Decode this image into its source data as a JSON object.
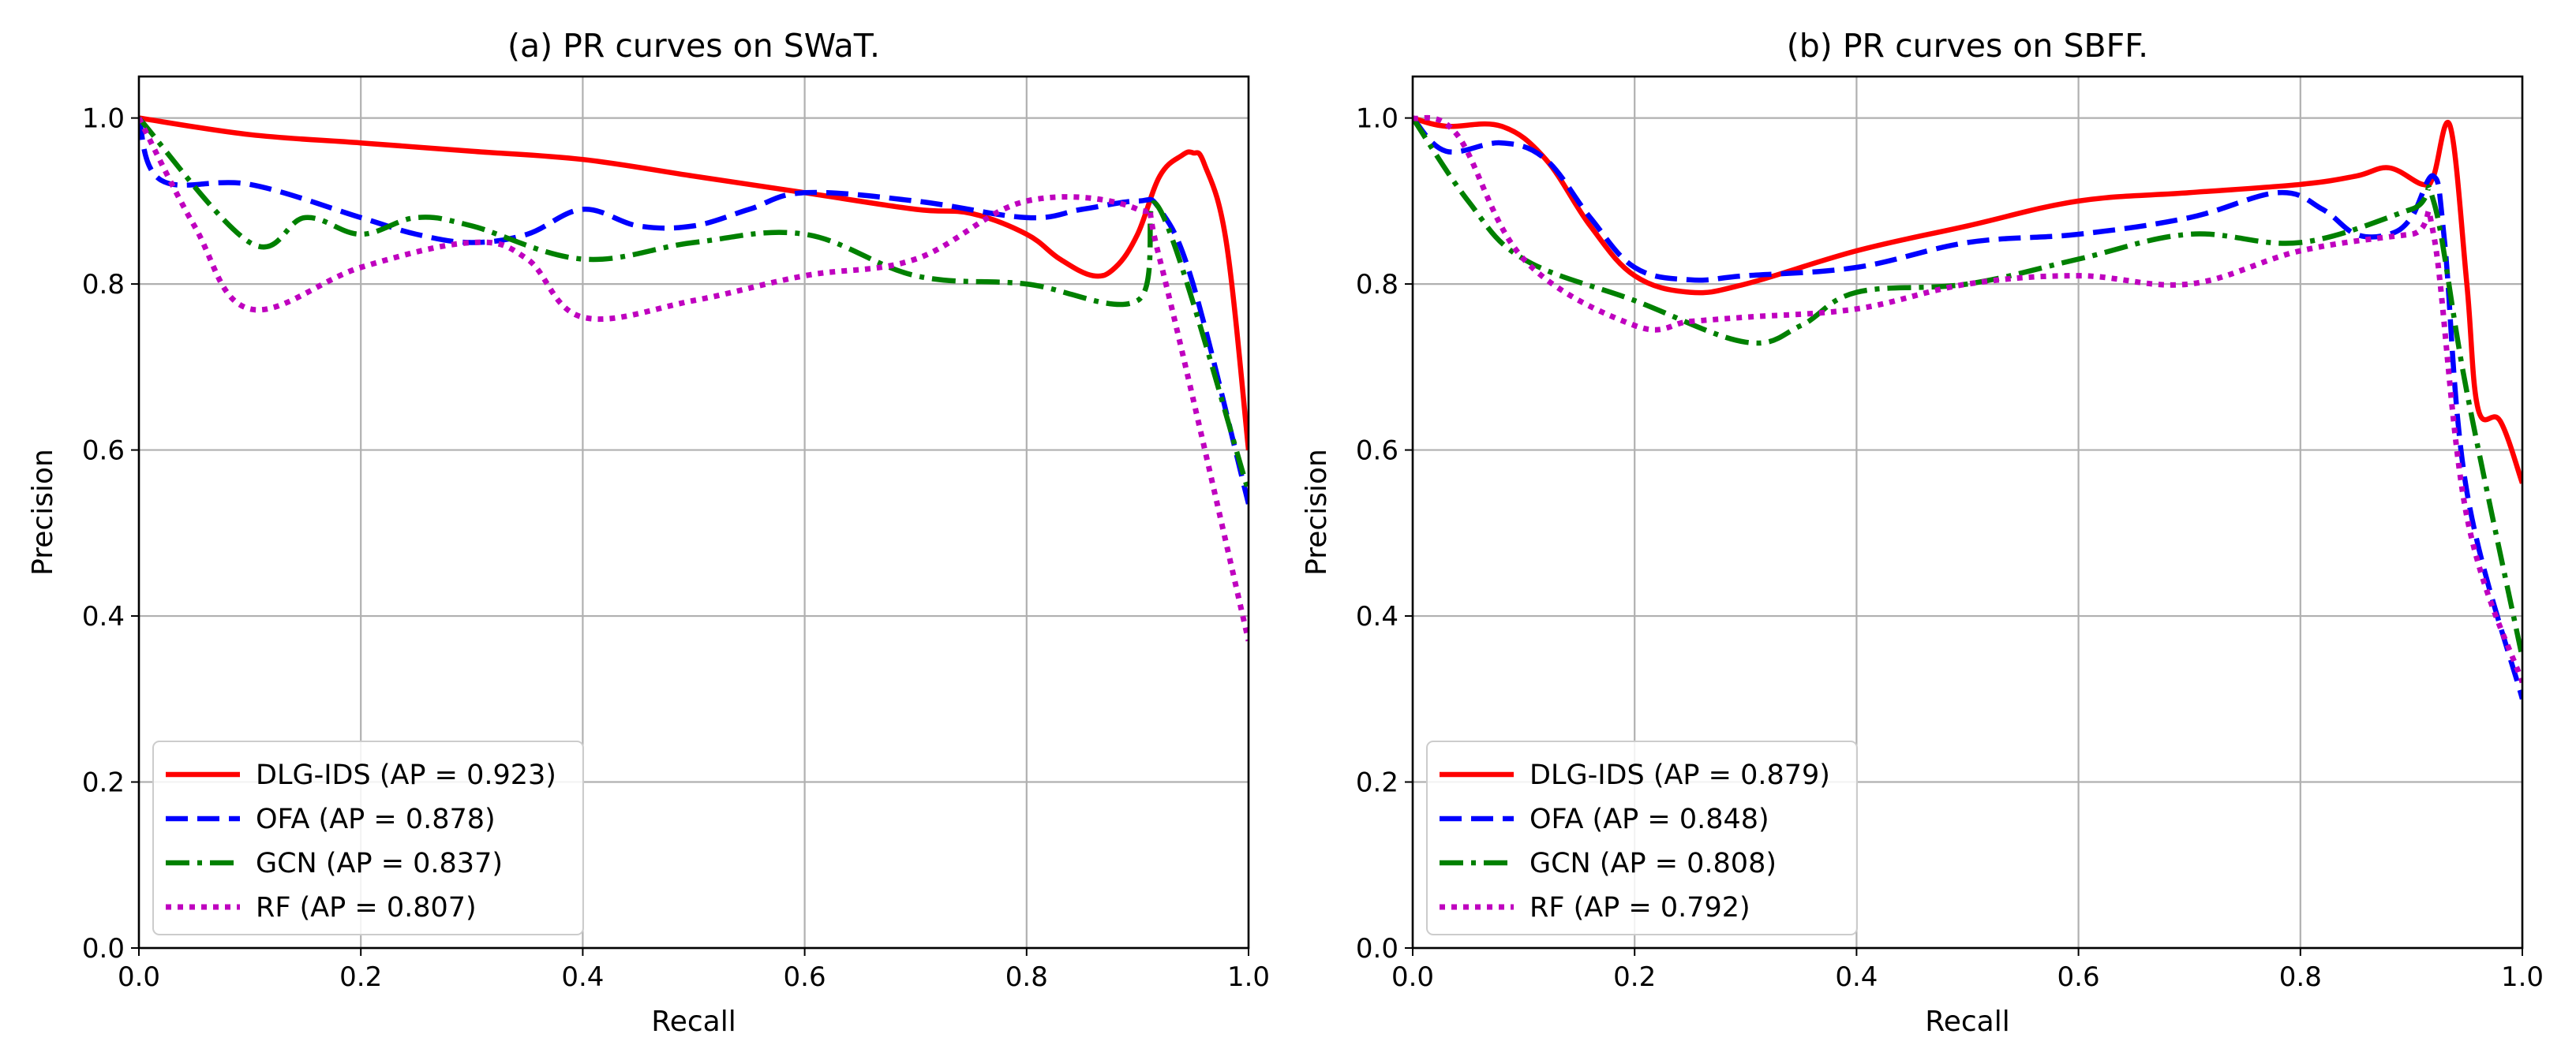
{
  "chart_data": [
    {
      "type": "line",
      "title": "(a) PR curves on SWaT.",
      "xlabel": "Recall",
      "ylabel": "Precision",
      "xlim": [
        0,
        1
      ],
      "ylim": [
        0,
        1.05
      ],
      "xticks": [
        "0.0",
        "0.2",
        "0.4",
        "0.6",
        "0.8",
        "1.0"
      ],
      "yticks": [
        "0.0",
        "0.2",
        "0.4",
        "0.6",
        "0.8",
        "1.0"
      ],
      "xtick_values": [
        0,
        0.2,
        0.4,
        0.6,
        0.8,
        1.0
      ],
      "ytick_values": [
        0,
        0.2,
        0.4,
        0.6,
        0.8,
        1.0
      ],
      "grid": true,
      "legend_position": "lower-left",
      "series": [
        {
          "name": "DLG-IDS (AP = 0.923)",
          "color": "#ff0000",
          "style": "solid",
          "x": [
            0,
            0.1,
            0.2,
            0.3,
            0.4,
            0.5,
            0.6,
            0.7,
            0.75,
            0.8,
            0.83,
            0.86,
            0.88,
            0.9,
            0.92,
            0.94,
            0.95,
            0.96,
            0.98,
            1.0
          ],
          "y": [
            1.0,
            0.98,
            0.97,
            0.96,
            0.95,
            0.93,
            0.91,
            0.89,
            0.885,
            0.86,
            0.83,
            0.81,
            0.82,
            0.86,
            0.93,
            0.955,
            0.958,
            0.945,
            0.85,
            0.6
          ]
        },
        {
          "name": "OFA (AP = 0.878)",
          "color": "#0000ff",
          "style": "dashed",
          "x": [
            0,
            0.02,
            0.1,
            0.2,
            0.25,
            0.3,
            0.35,
            0.4,
            0.45,
            0.5,
            0.55,
            0.6,
            0.7,
            0.8,
            0.85,
            0.9,
            0.92,
            0.95,
            1.0
          ],
          "y": [
            1.0,
            0.925,
            0.92,
            0.88,
            0.86,
            0.85,
            0.86,
            0.89,
            0.87,
            0.87,
            0.89,
            0.91,
            0.9,
            0.88,
            0.89,
            0.9,
            0.89,
            0.8,
            0.535
          ]
        },
        {
          "name": "GCN (AP = 0.837)",
          "color": "#008000",
          "style": "dashdot",
          "x": [
            0,
            0.1,
            0.15,
            0.2,
            0.25,
            0.3,
            0.4,
            0.5,
            0.6,
            0.7,
            0.8,
            0.9,
            0.92,
            1.0
          ],
          "y": [
            1.0,
            0.85,
            0.88,
            0.86,
            0.88,
            0.87,
            0.83,
            0.85,
            0.86,
            0.81,
            0.8,
            0.78,
            0.89,
            0.55
          ]
        },
        {
          "name": "RF (AP = 0.807)",
          "color": "#bf00bf",
          "style": "dotted",
          "x": [
            0,
            0.05,
            0.1,
            0.2,
            0.3,
            0.35,
            0.4,
            0.5,
            0.6,
            0.7,
            0.8,
            0.9,
            0.92,
            1.0
          ],
          "y": [
            1.0,
            0.87,
            0.77,
            0.82,
            0.85,
            0.83,
            0.76,
            0.78,
            0.81,
            0.83,
            0.9,
            0.89,
            0.83,
            0.37
          ]
        }
      ]
    },
    {
      "type": "line",
      "title": "(b) PR curves on SBFF.",
      "xlabel": "Recall",
      "ylabel": "Precision",
      "xlim": [
        0,
        1
      ],
      "ylim": [
        0,
        1.05
      ],
      "xticks": [
        "0.0",
        "0.2",
        "0.4",
        "0.6",
        "0.8",
        "1.0"
      ],
      "yticks": [
        "0.0",
        "0.2",
        "0.4",
        "0.6",
        "0.8",
        "1.0"
      ],
      "xtick_values": [
        0,
        0.2,
        0.4,
        0.6,
        0.8,
        1.0
      ],
      "ytick_values": [
        0,
        0.2,
        0.4,
        0.6,
        0.8,
        1.0
      ],
      "grid": true,
      "legend_position": "lower-left",
      "series": [
        {
          "name": "DLG-IDS (AP = 0.879)",
          "color": "#ff0000",
          "style": "solid",
          "x": [
            0,
            0.03,
            0.08,
            0.12,
            0.16,
            0.2,
            0.25,
            0.3,
            0.4,
            0.5,
            0.6,
            0.7,
            0.8,
            0.85,
            0.88,
            0.91,
            0.92,
            0.935,
            0.95,
            0.96,
            0.98,
            1.0
          ],
          "y": [
            1.0,
            0.99,
            0.99,
            0.95,
            0.87,
            0.81,
            0.79,
            0.8,
            0.84,
            0.87,
            0.9,
            0.91,
            0.92,
            0.93,
            0.94,
            0.92,
            0.93,
            0.99,
            0.8,
            0.65,
            0.635,
            0.56
          ]
        },
        {
          "name": "OFA (AP = 0.848)",
          "color": "#0000ff",
          "style": "dashed",
          "x": [
            0,
            0.03,
            0.08,
            0.12,
            0.16,
            0.2,
            0.25,
            0.3,
            0.4,
            0.5,
            0.6,
            0.7,
            0.78,
            0.82,
            0.85,
            0.88,
            0.9,
            0.92,
            0.93,
            0.95,
            1.0
          ],
          "y": [
            1.0,
            0.96,
            0.97,
            0.95,
            0.88,
            0.82,
            0.805,
            0.81,
            0.82,
            0.85,
            0.86,
            0.88,
            0.91,
            0.89,
            0.86,
            0.86,
            0.88,
            0.93,
            0.85,
            0.55,
            0.3
          ]
        },
        {
          "name": "GCN (AP = 0.808)",
          "color": "#008000",
          "style": "dashdot",
          "x": [
            0,
            0.05,
            0.1,
            0.2,
            0.3,
            0.35,
            0.4,
            0.5,
            0.6,
            0.7,
            0.8,
            0.9,
            0.92,
            0.95,
            1.0
          ],
          "y": [
            1.0,
            0.9,
            0.83,
            0.78,
            0.73,
            0.75,
            0.79,
            0.8,
            0.83,
            0.86,
            0.85,
            0.89,
            0.9,
            0.67,
            0.35
          ]
        },
        {
          "name": "RF (AP = 0.792)",
          "color": "#bf00bf",
          "style": "dotted",
          "x": [
            0,
            0.04,
            0.1,
            0.2,
            0.25,
            0.3,
            0.4,
            0.5,
            0.6,
            0.7,
            0.8,
            0.9,
            0.92,
            0.95,
            1.0
          ],
          "y": [
            1.0,
            0.98,
            0.83,
            0.75,
            0.755,
            0.76,
            0.77,
            0.8,
            0.81,
            0.8,
            0.84,
            0.86,
            0.86,
            0.52,
            0.32
          ]
        }
      ]
    }
  ]
}
